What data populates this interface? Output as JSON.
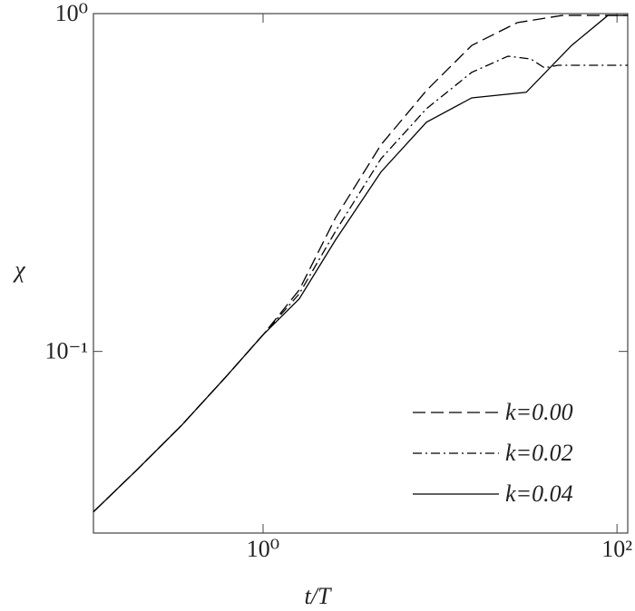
{
  "chart_data": {
    "type": "line",
    "xlabel": "t/T",
    "ylabel": "χ",
    "xscale": "log",
    "yscale": "log",
    "xlim": [
      0.11,
      115
    ],
    "ylim": [
      0.029,
      1.0
    ],
    "xticks": [
      {
        "value": 1,
        "label": "10⁰"
      },
      {
        "value": 100,
        "label": "10²"
      }
    ],
    "yticks": [
      {
        "value": 0.1,
        "label": "10⁻¹"
      },
      {
        "value": 1,
        "label": "10⁰"
      }
    ],
    "legend": "lower right",
    "series": [
      {
        "name": "k=0.00",
        "color": "#000000",
        "linestyle": "dashed",
        "x": [
          0.11,
          0.191,
          0.345,
          0.624,
          1,
          1.6,
          2.57,
          4.64,
          8.38,
          15.1,
          27.3,
          49.2,
          115
        ],
        "values": [
          0.0335,
          0.0443,
          0.0603,
          0.0847,
          0.112,
          0.152,
          0.249,
          0.409,
          0.592,
          0.805,
          0.94,
          0.988,
          0.988
        ]
      },
      {
        "name": "k=0.02",
        "color": "#000000",
        "linestyle": "dashdot",
        "x": [
          0.11,
          0.191,
          0.345,
          0.624,
          1,
          1.6,
          2.57,
          4.64,
          8.38,
          15.1,
          24.2,
          32.6,
          38.9,
          46.4,
          115
        ],
        "values": [
          0.0335,
          0.0443,
          0.0603,
          0.0847,
          0.112,
          0.148,
          0.227,
          0.372,
          0.523,
          0.67,
          0.748,
          0.734,
          0.691,
          0.703,
          0.703
        ]
      },
      {
        "name": "k=0.04",
        "color": "#000000",
        "linestyle": "solid",
        "x": [
          0.11,
          0.191,
          0.345,
          0.624,
          1,
          1.6,
          2.57,
          4.64,
          8.38,
          15.1,
          30.7,
          55.4,
          88.9,
          115
        ],
        "values": [
          0.0335,
          0.0443,
          0.0603,
          0.0847,
          0.112,
          0.143,
          0.214,
          0.34,
          0.477,
          0.563,
          0.585,
          0.805,
          0.988,
          0.988
        ]
      }
    ]
  }
}
